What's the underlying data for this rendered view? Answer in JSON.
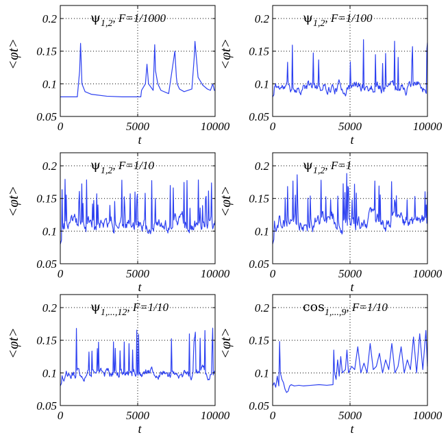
{
  "chart_data": [
    {
      "type": "line",
      "title": {
        "name": "ψ",
        "sub": "1,2",
        "rest": ", F=1/1000"
      },
      "xlabel": "t",
      "ylabel": "<φt>",
      "xlim": [
        0,
        10000
      ],
      "ylim": [
        0.05,
        0.22
      ],
      "xticks": [
        "0",
        "5000",
        "10000"
      ],
      "yticks": [
        "0.05",
        "0.1",
        "0.15",
        "0.2"
      ],
      "grid": true,
      "series": [
        {
          "name": "F=1/1000",
          "color": "#2b3ff0",
          "x": [
            0,
            1100,
            1250,
            1310,
            1400,
            1600,
            2000,
            3000,
            4000,
            5200,
            5250,
            5500,
            5600,
            5700,
            6000,
            6100,
            6150,
            6300,
            6500,
            7000,
            7400,
            7500,
            7550,
            7700,
            8000,
            8500,
            8650,
            8700,
            8900,
            9200,
            9500,
            9700,
            9850,
            9950,
            10000
          ],
          "y": [
            0.08,
            0.08,
            0.12,
            0.162,
            0.1,
            0.088,
            0.084,
            0.081,
            0.08,
            0.08,
            0.09,
            0.1,
            0.13,
            0.1,
            0.09,
            0.16,
            0.12,
            0.1,
            0.09,
            0.085,
            0.15,
            0.11,
            0.1,
            0.092,
            0.088,
            0.092,
            0.14,
            0.165,
            0.11,
            0.098,
            0.092,
            0.09,
            0.1,
            0.09,
            0.09
          ]
        }
      ]
    },
    {
      "type": "line",
      "title": {
        "name": "ψ",
        "sub": "1,2",
        "rest": ", F=1/100"
      },
      "xlabel": "t",
      "ylabel": "<φt>",
      "xlim": [
        0,
        10000
      ],
      "ylim": [
        0.05,
        0.22
      ],
      "xticks": [
        "0",
        "5000",
        "10000"
      ],
      "yticks": [
        "0.05",
        "0.1",
        "0.15",
        "0.2"
      ],
      "grid": true,
      "series": [
        {
          "name": "F=1/100",
          "color": "#2b3ff0",
          "seed": 11,
          "mode": "spiky",
          "base": 0.095,
          "noise": 0.012,
          "spike_rate": 0.055,
          "spike_min": 0.13,
          "spike_max": 0.17,
          "start": 0.08,
          "y_min_clip": 0.072
        }
      ]
    },
    {
      "type": "line",
      "title": {
        "name": "ψ",
        "sub": "1,2",
        "rest": ", F=1/10"
      },
      "xlabel": "t",
      "ylabel": "<φt>",
      "xlim": [
        0,
        10000
      ],
      "ylim": [
        0.05,
        0.22
      ],
      "xticks": [
        "0",
        "5000",
        "10000"
      ],
      "yticks": [
        "0.05",
        "0.1",
        "0.15",
        "0.2"
      ],
      "grid": true,
      "series": [
        {
          "name": "F=1/10",
          "color": "#2b3ff0",
          "seed": 23,
          "mode": "spiky",
          "base": 0.11,
          "noise": 0.016,
          "spike_rate": 0.12,
          "spike_min": 0.135,
          "spike_max": 0.18,
          "start": 0.08,
          "y_min_clip": 0.07
        }
      ]
    },
    {
      "type": "line",
      "title": {
        "name": "ψ",
        "sub": "1,2",
        "rest": ", F=1"
      },
      "xlabel": "t",
      "ylabel": "<φt>",
      "xlim": [
        0,
        10000
      ],
      "ylim": [
        0.05,
        0.22
      ],
      "xticks": [
        "0",
        "5000",
        "10000"
      ],
      "yticks": [
        "0.05",
        "0.1",
        "0.15",
        "0.2"
      ],
      "grid": true,
      "series": [
        {
          "name": "F=1",
          "color": "#2b3ff0",
          "seed": 37,
          "mode": "spiky",
          "base": 0.115,
          "noise": 0.018,
          "spike_rate": 0.13,
          "spike_min": 0.14,
          "spike_max": 0.19,
          "start": 0.08,
          "y_min_clip": 0.075
        }
      ]
    },
    {
      "type": "line",
      "title": {
        "name": "ψ",
        "sub": "1,...,12",
        "rest": ", F=1/10"
      },
      "xlabel": "t",
      "ylabel": "<φt>",
      "xlim": [
        0,
        10000
      ],
      "ylim": [
        0.05,
        0.22
      ],
      "xticks": [
        "0",
        "5000",
        "10000"
      ],
      "yticks": [
        "0.05",
        "0.1",
        "0.15",
        "0.2"
      ],
      "grid": true,
      "series": [
        {
          "name": "F=1/10",
          "color": "#2b3ff0",
          "seed": 53,
          "mode": "spiky",
          "base": 0.1,
          "noise": 0.01,
          "spike_rate": 0.1,
          "spike_min": 0.13,
          "spike_max": 0.17,
          "start": 0.08,
          "y_min_clip": 0.07
        }
      ]
    },
    {
      "type": "line",
      "title": {
        "name": "cos",
        "sub": "1,...,9",
        "rest": ", F=1/10"
      },
      "xlabel": "t",
      "ylabel": "<φt>",
      "xlim": [
        0,
        10000
      ],
      "ylim": [
        0.05,
        0.22
      ],
      "xticks": [
        "0",
        "5000",
        "10000"
      ],
      "yticks": [
        "0.05",
        "0.1",
        "0.15",
        "0.2"
      ],
      "grid": true,
      "series": [
        {
          "name": "F=1/10",
          "color": "#2b3ff0",
          "x": [
            0,
            100,
            200,
            300,
            400,
            450,
            500,
            600,
            700,
            800,
            900,
            1000,
            1100,
            1200,
            1400,
            1700,
            2000,
            2500,
            3000,
            3500,
            3900,
            3950,
            4000,
            4100,
            4200,
            4300,
            4400,
            4500,
            4700,
            4800,
            4900,
            5100,
            5300,
            5500,
            5700,
            5900,
            6100,
            6300,
            6500,
            6700,
            6900,
            7100,
            7300,
            7500,
            7700,
            7900,
            8100,
            8300,
            8500,
            8700,
            8900,
            9100,
            9300,
            9500,
            9700,
            9900,
            10000
          ],
          "y": [
            0.08,
            0.085,
            0.078,
            0.095,
            0.08,
            0.148,
            0.1,
            0.09,
            0.085,
            0.075,
            0.07,
            0.072,
            0.08,
            0.082,
            0.08,
            0.081,
            0.08,
            0.081,
            0.082,
            0.081,
            0.082,
            0.135,
            0.1,
            0.09,
            0.12,
            0.095,
            0.125,
            0.1,
            0.105,
            0.135,
            0.1,
            0.11,
            0.105,
            0.14,
            0.1,
            0.115,
            0.1,
            0.145,
            0.105,
            0.11,
            0.13,
            0.1,
            0.12,
            0.105,
            0.145,
            0.1,
            0.11,
            0.14,
            0.1,
            0.12,
            0.105,
            0.155,
            0.1,
            0.16,
            0.105,
            0.165,
            0.11
          ]
        }
      ]
    }
  ]
}
